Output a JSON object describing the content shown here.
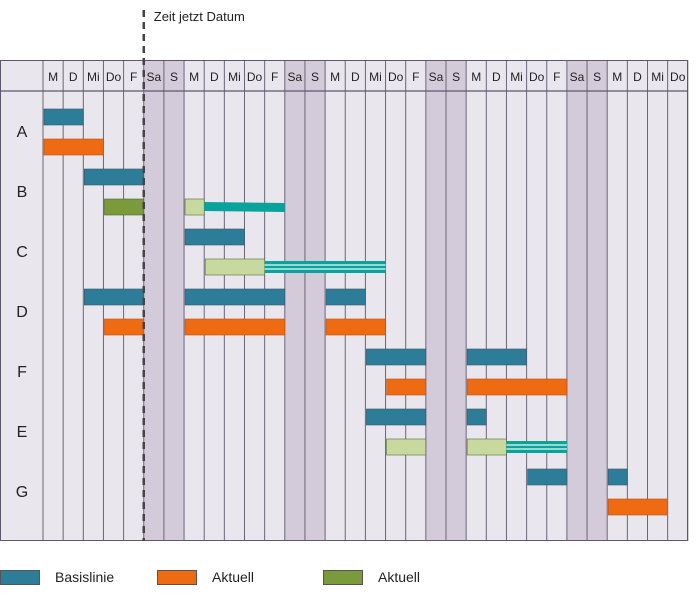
{
  "timeline": {
    "now_label": "Zeit jetzt Datum",
    "now_after_day": 5,
    "days": [
      "M",
      "D",
      "Mi",
      "Do",
      "F",
      "Sa",
      "S",
      "M",
      "D",
      "Mi",
      "Do",
      "F",
      "Sa",
      "S",
      "M",
      "D",
      "Mi",
      "Do",
      "F",
      "Sa",
      "S",
      "M",
      "D",
      "Mi",
      "Do",
      "F",
      "Sa",
      "S",
      "M",
      "D",
      "Mi",
      "Do"
    ],
    "weekend_days": [
      5,
      6,
      12,
      13,
      19,
      20,
      26,
      27
    ]
  },
  "colors": {
    "baseline": "#2e7d98",
    "actual": "#ee6b12",
    "actual_done": "#7a9a3c",
    "planned_light": "#c8d9a0",
    "extension": "#0aa39b",
    "weekday_bg": "#e9e6ee",
    "weekend_bg": "#d3cbda",
    "now_line": "#444444"
  },
  "rows": [
    {
      "label": "A",
      "bars": [
        {
          "type": "baseline",
          "start": 0,
          "end": 2
        },
        {
          "type": "actual",
          "start": 0,
          "end": 3
        }
      ]
    },
    {
      "label": "B",
      "bars": [
        {
          "type": "baseline",
          "start": 2,
          "end": 5
        },
        {
          "type": "actual_done",
          "start": 3,
          "end": 5
        },
        {
          "type": "planned_light",
          "start": 7,
          "end": 8
        },
        {
          "type": "extension_solid",
          "start": 8,
          "end": 12
        }
      ]
    },
    {
      "label": "C",
      "bars": [
        {
          "type": "baseline",
          "start": 7,
          "end": 10
        },
        {
          "type": "planned_light",
          "start": 8,
          "end": 11
        },
        {
          "type": "extension_striped",
          "start": 11,
          "end": 17
        }
      ]
    },
    {
      "label": "D",
      "bars": [
        {
          "type": "baseline",
          "start": 2,
          "end": 5
        },
        {
          "type": "baseline",
          "start": 7,
          "end": 12
        },
        {
          "type": "baseline",
          "start": 14,
          "end": 16
        },
        {
          "type": "actual",
          "start": 3,
          "end": 5
        },
        {
          "type": "actual",
          "start": 7,
          "end": 12
        },
        {
          "type": "actual",
          "start": 14,
          "end": 17
        }
      ]
    },
    {
      "label": "F",
      "bars": [
        {
          "type": "baseline",
          "start": 16,
          "end": 19
        },
        {
          "type": "baseline",
          "start": 21,
          "end": 24
        },
        {
          "type": "actual",
          "start": 17,
          "end": 19
        },
        {
          "type": "actual",
          "start": 21,
          "end": 26
        }
      ]
    },
    {
      "label": "E",
      "bars": [
        {
          "type": "baseline",
          "start": 16,
          "end": 19
        },
        {
          "type": "baseline",
          "start": 21,
          "end": 22
        },
        {
          "type": "planned_light",
          "start": 17,
          "end": 19
        },
        {
          "type": "planned_light",
          "start": 21,
          "end": 23
        },
        {
          "type": "extension_striped",
          "start": 23,
          "end": 26
        }
      ]
    },
    {
      "label": "G",
      "bars": [
        {
          "type": "baseline",
          "start": 24,
          "end": 26
        },
        {
          "type": "baseline",
          "start": 28,
          "end": 29
        },
        {
          "type": "actual",
          "start": 28,
          "end": 31
        }
      ]
    }
  ],
  "legend": [
    {
      "label": "Basislinie",
      "color": "#2e7d98"
    },
    {
      "label": "Aktuell",
      "color": "#ee6b12"
    },
    {
      "label": "Aktuell",
      "color": "#7a9a3c"
    }
  ]
}
